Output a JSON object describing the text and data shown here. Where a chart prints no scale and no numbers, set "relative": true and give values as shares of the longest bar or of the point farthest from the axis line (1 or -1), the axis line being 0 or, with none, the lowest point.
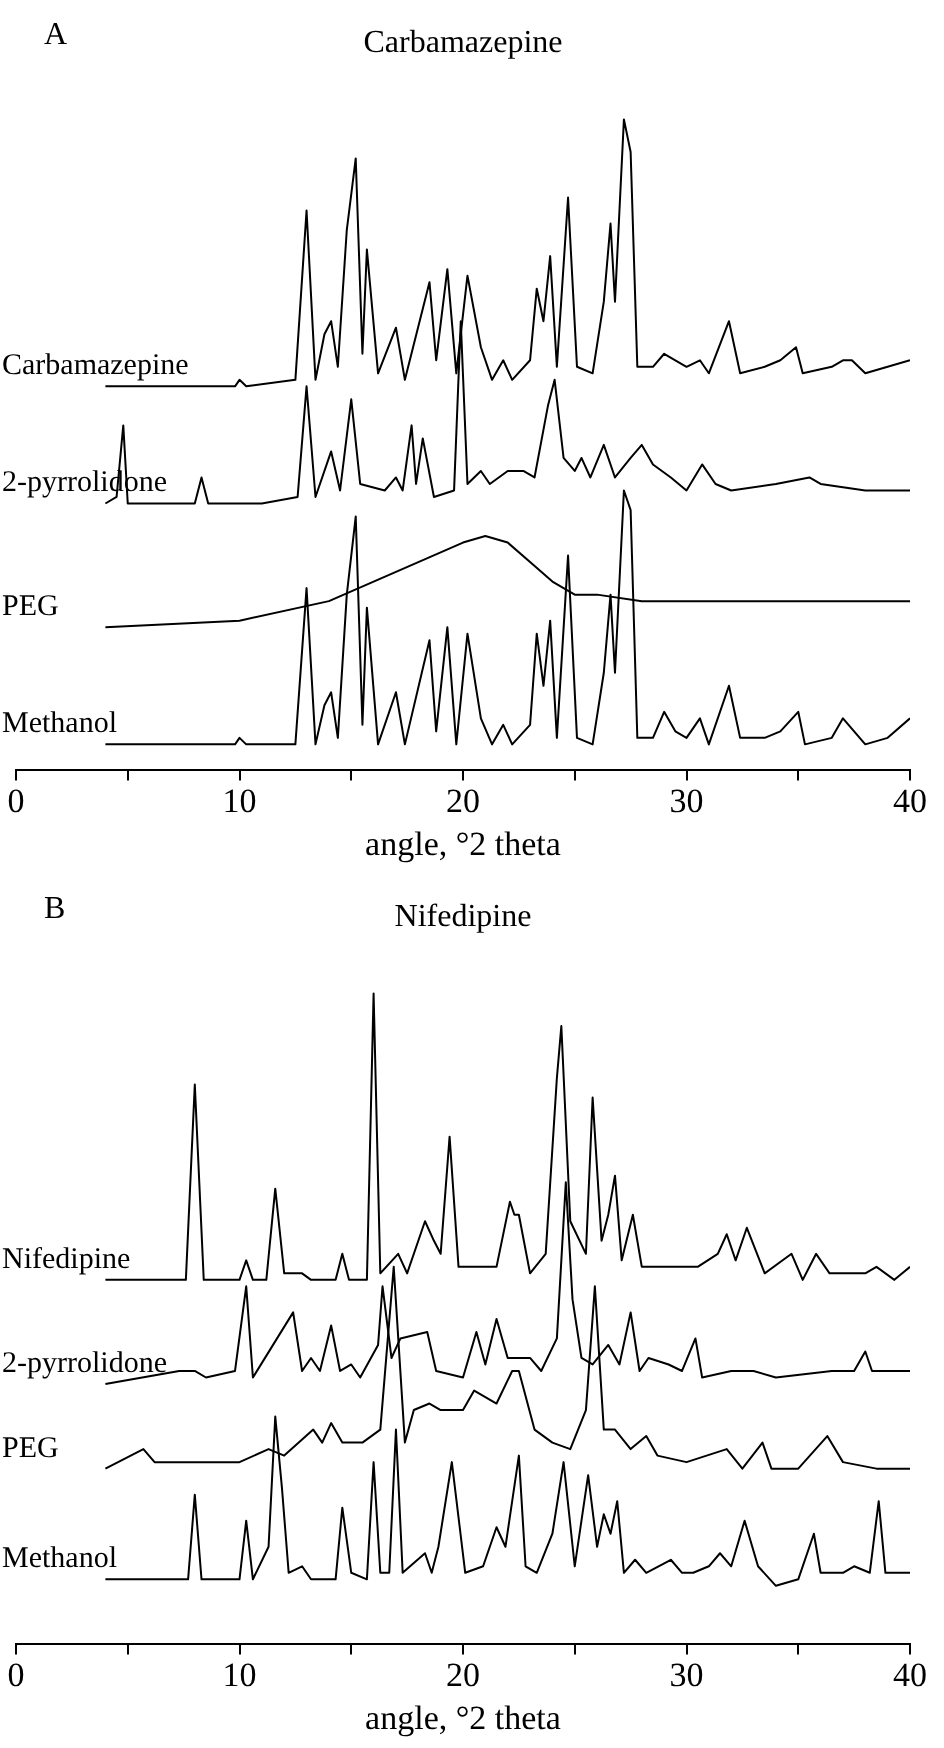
{
  "chart_data": [
    {
      "type": "line",
      "title": "Carbamazepine",
      "xlabel": "angle, °2 theta",
      "annotations": [
        "A"
      ],
      "relative": true,
      "xlim": [
        0,
        40
      ],
      "xticks": [
        0,
        {
          "value": 5,
          "label": null
        },
        10,
        {
          "value": 15,
          "label": null
        },
        20,
        {
          "value": 25,
          "label": null
        },
        30,
        {
          "value": 35,
          "label": null
        },
        40
      ],
      "tick_labels": "x",
      "grid": false,
      "legend": false,
      "series": [
        {
          "name": "Carbamazepine",
          "color": "#000000",
          "x": [
            4,
            9.8,
            10,
            10.3,
            12.5,
            13,
            13.4,
            13.8,
            14.1,
            14.4,
            14.8,
            15.2,
            15.5,
            15.7,
            16.2,
            17,
            17.4,
            18.5,
            18.8,
            19.3,
            19.7,
            20.2,
            20.8,
            21.3,
            21.8,
            22.2,
            23,
            23.3,
            23.6,
            23.9,
            24.2,
            24.7,
            25.1,
            25.8,
            26.3,
            26.6,
            26.8,
            27.2,
            27.5,
            27.8,
            28.5,
            29,
            29.5,
            30,
            30.6,
            31,
            31.9,
            32.4,
            33.5,
            34.2,
            34.9,
            35.2,
            36.5,
            37,
            37.4,
            38,
            39,
            40
          ],
          "values": [
            0.59,
            0.59,
            0.6,
            0.59,
            0.6,
            0.86,
            0.6,
            0.67,
            0.69,
            0.62,
            0.83,
            0.94,
            0.64,
            0.8,
            0.61,
            0.68,
            0.6,
            0.75,
            0.63,
            0.77,
            0.61,
            0.76,
            0.65,
            0.6,
            0.63,
            0.6,
            0.63,
            0.74,
            0.69,
            0.79,
            0.62,
            0.88,
            0.62,
            0.61,
            0.72,
            0.84,
            0.72,
            1,
            0.95,
            0.62,
            0.62,
            0.64,
            0.63,
            0.62,
            0.63,
            0.61,
            0.69,
            0.61,
            0.62,
            0.63,
            0.65,
            0.61,
            0.62,
            0.63,
            0.63,
            0.61,
            0.62,
            0.63
          ]
        },
        {
          "name": "2-pyrrolidone",
          "color": "#000000",
          "x": [
            4,
            4.5,
            4.8,
            5,
            8,
            8.3,
            8.6,
            11,
            12.6,
            13,
            13.4,
            14.1,
            14.5,
            15,
            15.4,
            16.5,
            17,
            17.3,
            17.7,
            17.9,
            18.2,
            18.7,
            19.6,
            19.9,
            20.2,
            20.8,
            21.2,
            22,
            22.7,
            23.2,
            23.8,
            24.1,
            24.5,
            25,
            25.3,
            25.7,
            26.3,
            26.8,
            27.5,
            28,
            28.5,
            29.3,
            30,
            30.7,
            31.3,
            32,
            34,
            35.5,
            36,
            38,
            40
          ],
          "values": [
            0.41,
            0.42,
            0.53,
            0.41,
            0.41,
            0.45,
            0.41,
            0.41,
            0.42,
            0.59,
            0.42,
            0.49,
            0.43,
            0.57,
            0.44,
            0.43,
            0.45,
            0.43,
            0.53,
            0.44,
            0.51,
            0.42,
            0.43,
            0.69,
            0.44,
            0.46,
            0.44,
            0.46,
            0.46,
            0.45,
            0.56,
            0.6,
            0.48,
            0.46,
            0.48,
            0.45,
            0.5,
            0.45,
            0.48,
            0.5,
            0.47,
            0.45,
            0.43,
            0.47,
            0.44,
            0.43,
            0.44,
            0.45,
            0.44,
            0.43,
            0.43
          ]
        },
        {
          "name": "PEG",
          "color": "#000000",
          "x": [
            4,
            10,
            14,
            16,
            18,
            20,
            21,
            22,
            23,
            24,
            25,
            26,
            28,
            30,
            32,
            35,
            38,
            40
          ],
          "values": [
            0.22,
            0.23,
            0.26,
            0.29,
            0.32,
            0.35,
            0.36,
            0.35,
            0.32,
            0.29,
            0.27,
            0.27,
            0.26,
            0.26,
            0.26,
            0.26,
            0.26,
            0.26
          ]
        },
        {
          "name": "Methanol",
          "color": "#000000",
          "x": [
            4,
            9.8,
            10,
            10.3,
            12.5,
            13,
            13.4,
            13.8,
            14.1,
            14.4,
            14.8,
            15.2,
            15.5,
            15.7,
            16.2,
            17,
            17.4,
            18.5,
            18.8,
            19.3,
            19.7,
            20.2,
            20.8,
            21.3,
            21.8,
            22.2,
            23,
            23.3,
            23.6,
            23.9,
            24.2,
            24.7,
            25.1,
            25.8,
            26.3,
            26.6,
            26.8,
            27.2,
            27.5,
            27.8,
            28.5,
            29,
            29.5,
            30,
            30.6,
            31,
            31.9,
            32.4,
            33.5,
            34.2,
            35,
            35.3,
            36.5,
            37,
            38,
            39,
            40
          ],
          "values": [
            0.04,
            0.04,
            0.05,
            0.04,
            0.04,
            0.28,
            0.04,
            0.1,
            0.12,
            0.05,
            0.27,
            0.39,
            0.07,
            0.25,
            0.04,
            0.12,
            0.04,
            0.2,
            0.06,
            0.22,
            0.04,
            0.21,
            0.08,
            0.04,
            0.07,
            0.04,
            0.07,
            0.21,
            0.13,
            0.23,
            0.05,
            0.33,
            0.05,
            0.04,
            0.15,
            0.27,
            0.15,
            0.43,
            0.4,
            0.05,
            0.05,
            0.09,
            0.06,
            0.05,
            0.08,
            0.04,
            0.13,
            0.05,
            0.05,
            0.06,
            0.09,
            0.04,
            0.05,
            0.08,
            0.04,
            0.05,
            0.08
          ]
        }
      ]
    },
    {
      "type": "line",
      "title": "Nifedipine",
      "xlabel": "angle, °2 theta",
      "annotations": [
        "B"
      ],
      "relative": true,
      "xlim": [
        0,
        40
      ],
      "xticks": [
        0,
        {
          "value": 5,
          "label": null
        },
        10,
        {
          "value": 15,
          "label": null
        },
        20,
        {
          "value": 25,
          "label": null
        },
        30,
        {
          "value": 35,
          "label": null
        },
        40
      ],
      "tick_labels": "x",
      "grid": false,
      "legend": false,
      "series": [
        {
          "name": "Nifedipine",
          "color": "#000000",
          "x": [
            4,
            7.6,
            8,
            8.4,
            10,
            10.3,
            10.6,
            11.2,
            11.6,
            12,
            12.8,
            13.2,
            14.3,
            14.6,
            14.9,
            15.7,
            16,
            16.3,
            17.1,
            17.5,
            18.3,
            18.7,
            19,
            19.4,
            19.8,
            20,
            21.5,
            22.1,
            22.3,
            22.5,
            23,
            23.7,
            24.2,
            24.4,
            24.8,
            25.5,
            25.8,
            26.2,
            26.5,
            26.8,
            27.1,
            27.6,
            28,
            29,
            30.5,
            31.4,
            31.8,
            32.2,
            32.7,
            33.5,
            34.7,
            35.2,
            35.8,
            36.4,
            38,
            38.5,
            39.3,
            40
          ],
          "values": [
            0.56,
            0.56,
            0.86,
            0.56,
            0.56,
            0.59,
            0.56,
            0.56,
            0.7,
            0.57,
            0.57,
            0.56,
            0.56,
            0.6,
            0.56,
            0.56,
            1,
            0.57,
            0.6,
            0.57,
            0.65,
            0.62,
            0.6,
            0.78,
            0.58,
            0.58,
            0.58,
            0.68,
            0.66,
            0.66,
            0.57,
            0.6,
            0.87,
            0.95,
            0.65,
            0.6,
            0.84,
            0.62,
            0.66,
            0.72,
            0.59,
            0.66,
            0.58,
            0.58,
            0.58,
            0.6,
            0.63,
            0.59,
            0.64,
            0.57,
            0.6,
            0.56,
            0.6,
            0.57,
            0.57,
            0.58,
            0.56,
            0.58
          ]
        },
        {
          "name": "2-pyrrolidone",
          "color": "#000000",
          "x": [
            4,
            7.3,
            8,
            8.5,
            9.8,
            10.3,
            10.6,
            12.4,
            12.8,
            13.2,
            13.6,
            14.1,
            14.5,
            15,
            15.4,
            16.2,
            16.4,
            16.8,
            17.2,
            18.4,
            18.8,
            20,
            20.6,
            21,
            21.5,
            22,
            23,
            23.5,
            24.2,
            24.6,
            24.9,
            25.3,
            25.8,
            26.5,
            27,
            27.5,
            27.9,
            28.3,
            29.2,
            29.8,
            30.4,
            30.7,
            32,
            33,
            34,
            36.5,
            37.5,
            38,
            38.3,
            39.5,
            40
          ],
          "values": [
            0.4,
            0.42,
            0.42,
            0.41,
            0.42,
            0.55,
            0.41,
            0.51,
            0.42,
            0.44,
            0.42,
            0.49,
            0.42,
            0.43,
            0.41,
            0.46,
            0.55,
            0.44,
            0.47,
            0.48,
            0.42,
            0.41,
            0.48,
            0.43,
            0.5,
            0.44,
            0.44,
            0.42,
            0.47,
            0.71,
            0.53,
            0.44,
            0.43,
            0.46,
            0.43,
            0.51,
            0.42,
            0.44,
            0.43,
            0.42,
            0.47,
            0.41,
            0.42,
            0.42,
            0.41,
            0.42,
            0.42,
            0.45,
            0.42,
            0.42,
            0.42
          ]
        },
        {
          "name": "PEG",
          "color": "#000000",
          "x": [
            4,
            5.7,
            6.2,
            10,
            11.3,
            12,
            13.3,
            13.7,
            14.1,
            14.6,
            15.5,
            16.3,
            16.9,
            17.4,
            17.8,
            18.5,
            19,
            20,
            20.5,
            21.5,
            22.2,
            22.5,
            23.2,
            24,
            24.8,
            25.5,
            25.9,
            26.3,
            26.8,
            27.5,
            28.2,
            28.7,
            30,
            31.8,
            32.5,
            33.4,
            33.8,
            35,
            36.3,
            37,
            38.5,
            40
          ],
          "values": [
            0.27,
            0.3,
            0.28,
            0.28,
            0.3,
            0.29,
            0.33,
            0.31,
            0.34,
            0.31,
            0.31,
            0.33,
            0.58,
            0.31,
            0.36,
            0.37,
            0.36,
            0.36,
            0.39,
            0.37,
            0.42,
            0.42,
            0.33,
            0.31,
            0.3,
            0.36,
            0.55,
            0.33,
            0.33,
            0.3,
            0.32,
            0.29,
            0.28,
            0.3,
            0.27,
            0.31,
            0.27,
            0.27,
            0.32,
            0.28,
            0.27,
            0.27
          ]
        },
        {
          "name": "Methanol",
          "color": "#000000",
          "x": [
            4,
            7.7,
            8,
            8.3,
            10,
            10.3,
            10.6,
            11.3,
            11.6,
            11.9,
            12.2,
            12.8,
            13.2,
            14.3,
            14.6,
            15,
            15.7,
            16,
            16.3,
            16.7,
            17,
            17.3,
            18.3,
            18.6,
            18.9,
            19.5,
            20.1,
            20.9,
            21.5,
            21.9,
            22.5,
            22.8,
            23.3,
            24,
            24.5,
            25,
            25.6,
            26,
            26.3,
            26.6,
            26.9,
            27.2,
            27.7,
            28.2,
            29.3,
            29.8,
            30.3,
            31,
            31.5,
            32,
            32.6,
            33.2,
            34,
            35,
            35.7,
            36,
            37,
            37.5,
            38.2,
            38.6,
            38.9,
            40
          ],
          "values": [
            0.1,
            0.1,
            0.23,
            0.1,
            0.1,
            0.19,
            0.1,
            0.15,
            0.35,
            0.24,
            0.11,
            0.12,
            0.1,
            0.1,
            0.21,
            0.11,
            0.1,
            0.28,
            0.11,
            0.11,
            0.33,
            0.11,
            0.14,
            0.11,
            0.15,
            0.28,
            0.11,
            0.12,
            0.18,
            0.15,
            0.29,
            0.12,
            0.11,
            0.17,
            0.28,
            0.12,
            0.26,
            0.15,
            0.2,
            0.17,
            0.22,
            0.11,
            0.13,
            0.11,
            0.13,
            0.11,
            0.11,
            0.12,
            0.14,
            0.12,
            0.19,
            0.12,
            0.09,
            0.1,
            0.17,
            0.11,
            0.11,
            0.12,
            0.11,
            0.22,
            0.11,
            0.11
          ]
        }
      ]
    }
  ]
}
